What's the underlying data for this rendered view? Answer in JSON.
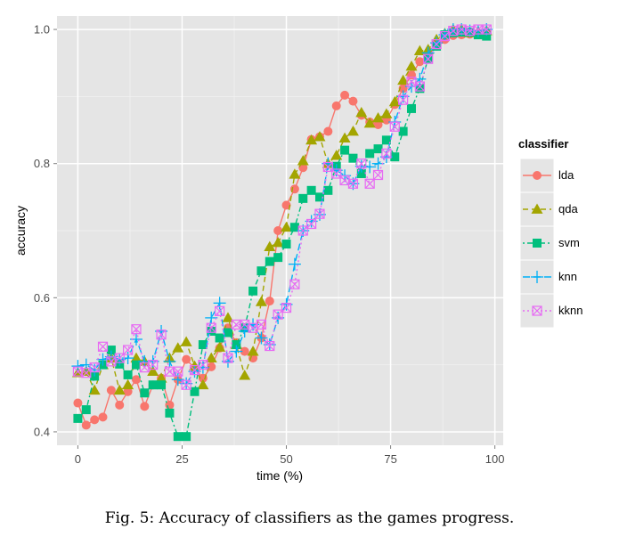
{
  "caption": "Fig. 5: Accuracy of classifiers as the games progress.",
  "chart_data": {
    "type": "line",
    "title": "",
    "xlabel": "time (%)",
    "ylabel": "accuracy",
    "xlim": [
      -5,
      102
    ],
    "ylim": [
      0.38,
      1.02
    ],
    "xticks": [
      0,
      25,
      50,
      75,
      100
    ],
    "xtick_labels": [
      "0",
      "25",
      "50",
      "75",
      "100"
    ],
    "yticks": [
      0.4,
      0.6,
      0.8,
      1.0
    ],
    "ytick_labels": [
      "0.4",
      "0.6",
      "0.8",
      "1.0"
    ],
    "grid": true,
    "legend": {
      "title": "classifier",
      "position": "right"
    },
    "x": [
      0,
      2,
      4,
      6,
      8,
      10,
      12,
      14,
      16,
      18,
      20,
      22,
      24,
      26,
      28,
      30,
      32,
      34,
      36,
      38,
      40,
      42,
      44,
      46,
      48,
      50,
      52,
      54,
      56,
      58,
      60,
      62,
      64,
      66,
      68,
      70,
      72,
      74,
      76,
      78,
      80,
      82,
      84,
      86,
      88,
      90,
      92,
      94,
      96,
      98
    ],
    "series": [
      {
        "name": "lda",
        "color": "#F8766D",
        "marker": "circle",
        "dash": "",
        "values": [
          0.443,
          0.41,
          0.418,
          0.422,
          0.462,
          0.44,
          0.46,
          0.478,
          0.438,
          0.47,
          0.48,
          0.44,
          0.478,
          0.508,
          0.495,
          0.48,
          0.497,
          0.525,
          0.555,
          0.533,
          0.52,
          0.51,
          0.54,
          0.595,
          0.7,
          0.738,
          0.762,
          0.794,
          0.836,
          0.84,
          0.848,
          0.886,
          0.902,
          0.893,
          0.872,
          0.862,
          0.858,
          0.865,
          0.888,
          0.912,
          0.932,
          0.952,
          0.962,
          0.975,
          0.985,
          0.991,
          0.992,
          0.993,
          0.994,
          0.996
        ]
      },
      {
        "name": "qda",
        "color": "#A3A500",
        "marker": "triangle",
        "dash": "6,4",
        "values": [
          0.488,
          0.49,
          0.462,
          0.5,
          0.51,
          0.462,
          0.47,
          0.51,
          0.505,
          0.49,
          0.48,
          0.51,
          0.525,
          0.534,
          0.498,
          0.47,
          0.51,
          0.526,
          0.57,
          0.53,
          0.484,
          0.52,
          0.594,
          0.676,
          0.682,
          0.705,
          0.784,
          0.804,
          0.835,
          0.84,
          0.8,
          0.812,
          0.838,
          0.848,
          0.876,
          0.86,
          0.868,
          0.874,
          0.892,
          0.924,
          0.945,
          0.968,
          0.97,
          0.985,
          0.994,
          1.0,
          1.0,
          0.995,
          0.997,
          0.998
        ]
      },
      {
        "name": "svm",
        "color": "#00BF7D",
        "marker": "square",
        "dash": "2,3,6,3",
        "values": [
          0.42,
          0.433,
          0.483,
          0.5,
          0.522,
          0.501,
          0.485,
          0.5,
          0.458,
          0.47,
          0.47,
          0.428,
          0.393,
          0.393,
          0.46,
          0.53,
          0.55,
          0.54,
          0.548,
          0.53,
          0.555,
          0.61,
          0.64,
          0.654,
          0.66,
          0.68,
          0.705,
          0.748,
          0.76,
          0.75,
          0.76,
          0.796,
          0.82,
          0.808,
          0.785,
          0.815,
          0.822,
          0.835,
          0.81,
          0.848,
          0.882,
          0.912,
          0.957,
          0.975,
          0.992,
          0.995,
          0.996,
          0.996,
          0.992,
          0.99
        ]
      },
      {
        "name": "knn",
        "color": "#00B0F6",
        "marker": "plus",
        "dash": "8,4",
        "values": [
          0.498,
          0.5,
          0.492,
          0.508,
          0.512,
          0.508,
          0.51,
          0.538,
          0.505,
          0.505,
          0.55,
          0.505,
          0.478,
          0.472,
          0.49,
          0.496,
          0.57,
          0.592,
          0.505,
          0.52,
          0.55,
          0.56,
          0.54,
          0.53,
          0.57,
          0.59,
          0.65,
          0.7,
          0.714,
          0.724,
          0.8,
          0.79,
          0.782,
          0.77,
          0.796,
          0.795,
          0.8,
          0.81,
          0.862,
          0.9,
          0.915,
          0.926,
          0.965,
          0.98,
          0.992,
          1.0,
          1.0,
          0.998,
          0.998,
          1.0
        ]
      },
      {
        "name": "kknn",
        "color": "#E76BF3",
        "marker": "boxx",
        "dash": "2,3",
        "values": [
          0.49,
          0.488,
          0.496,
          0.527,
          0.505,
          0.51,
          0.522,
          0.553,
          0.496,
          0.5,
          0.545,
          0.49,
          0.49,
          0.47,
          0.492,
          0.5,
          0.555,
          0.58,
          0.51,
          0.56,
          0.56,
          0.555,
          0.56,
          0.528,
          0.575,
          0.585,
          0.62,
          0.7,
          0.71,
          0.725,
          0.795,
          0.785,
          0.775,
          0.77,
          0.8,
          0.77,
          0.783,
          0.815,
          0.855,
          0.895,
          0.922,
          0.915,
          0.956,
          0.978,
          0.99,
          0.998,
          1.0,
          0.998,
          1.0,
          1.0
        ]
      }
    ]
  }
}
